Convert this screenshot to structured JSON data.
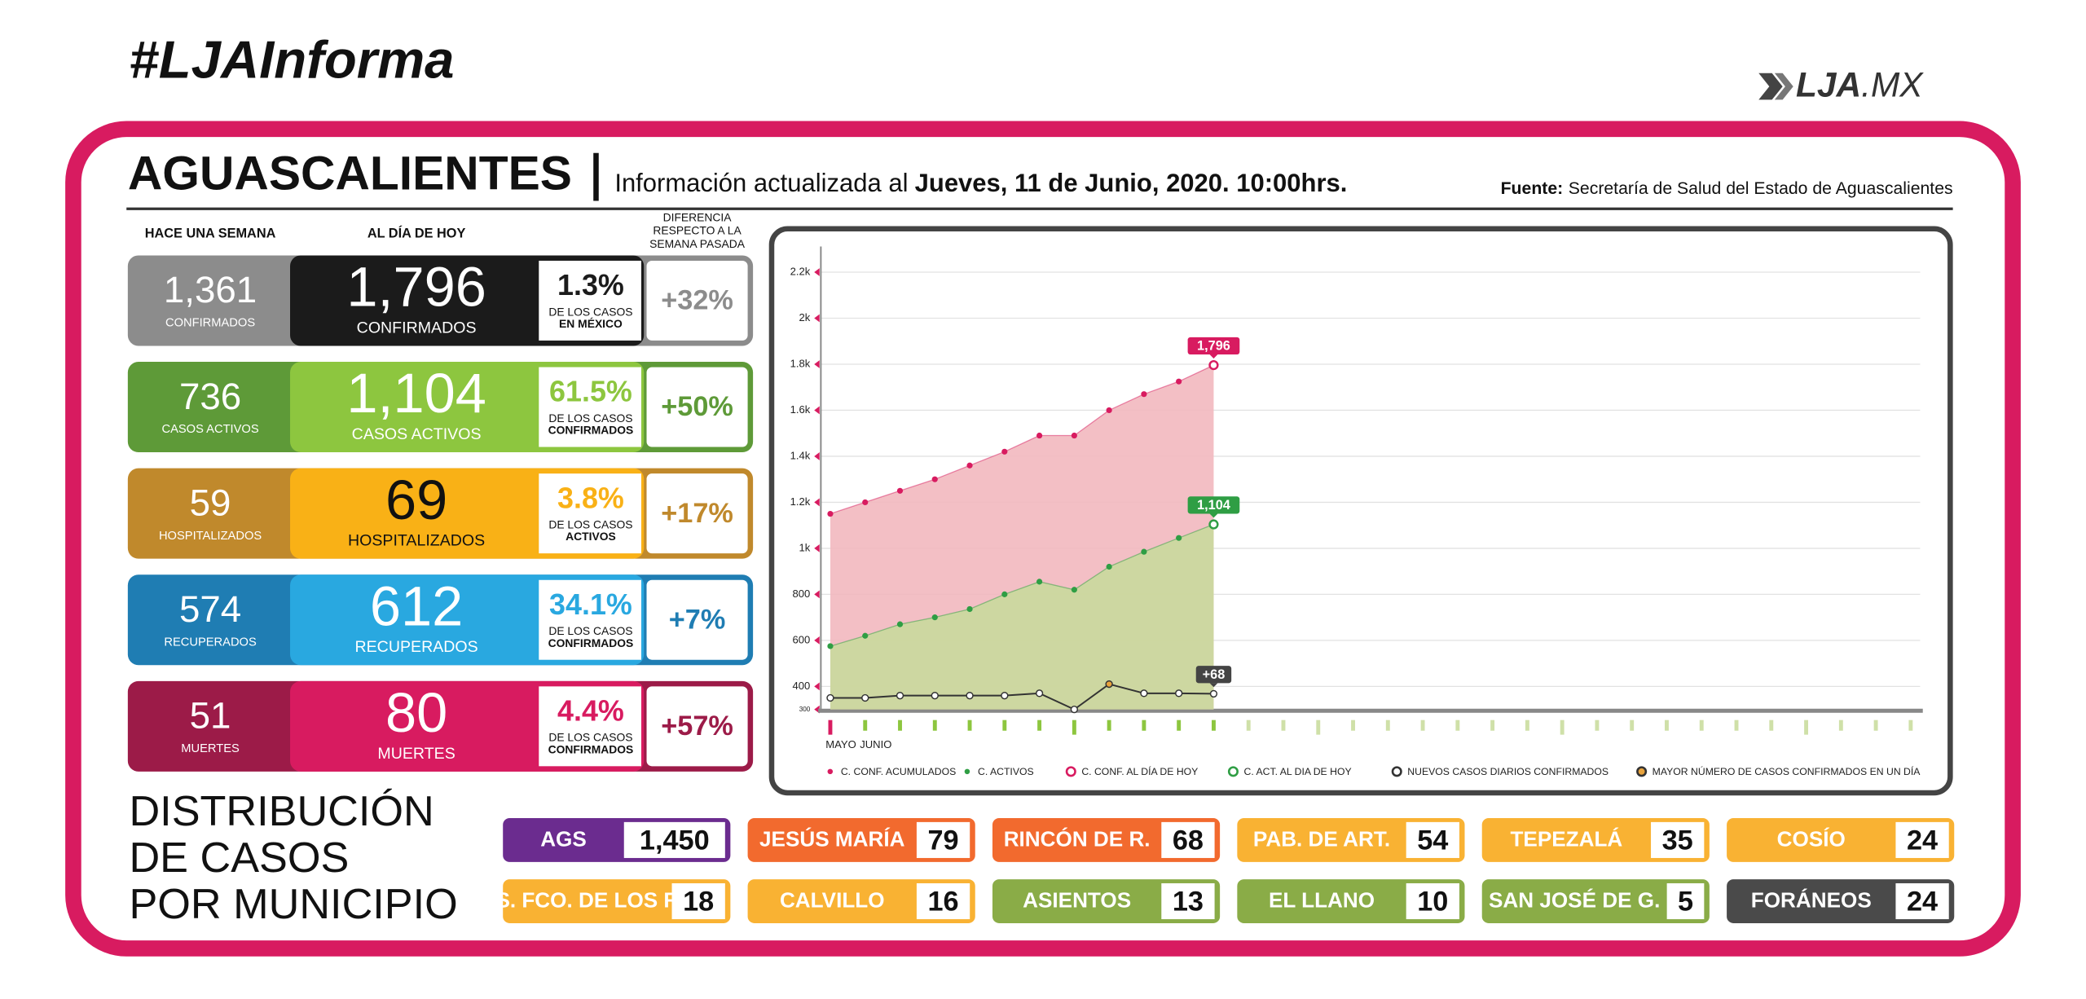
{
  "header": {
    "hashtag": "#LJAInforma",
    "logo_bold": "LJA",
    "logo_light": ".MX",
    "title": "AGUASCALIENTES",
    "updated_prefix": "Información actualizada al",
    "updated_date": "Jueves, 11 de Junio, 2020. 10:00hrs.",
    "source_label": "Fuente:",
    "source": "Secretaría de Salud del Estado de Aguascalientes"
  },
  "columns": {
    "week": "HACE UNA SEMANA",
    "today": "AL DÍA DE HOY",
    "diff": [
      "DIFERENCIA",
      "RESPECTO A LA",
      "SEMANA PASADA"
    ]
  },
  "cards": [
    {
      "week_value": "1,361",
      "week_label": "CONFIRMADOS",
      "today_value": "1,796",
      "today_label": "CONFIRMADOS",
      "pct": "1.3%",
      "pct_label": [
        "DE LOS CASOS",
        "EN MÉXICO"
      ],
      "diff": "+32%",
      "color_week": "#8c8c8c",
      "color_today": "#1b1b1b",
      "color_today_text": "#ffffff",
      "color_pct": "#1b1b1b",
      "color_diff": "#8c8c8c"
    },
    {
      "week_value": "736",
      "week_label": "CASOS ACTIVOS",
      "today_value": "1,104",
      "today_label": "CASOS ACTIVOS",
      "pct": "61.5%",
      "pct_label": [
        "DE LOS CASOS",
        "CONFIRMADOS"
      ],
      "diff": "+50%",
      "color_week": "#5e9a38",
      "color_today": "#8dc63f",
      "color_today_text": "#ffffff",
      "color_pct": "#8dc63f",
      "color_diff": "#5e9a38"
    },
    {
      "week_value": "59",
      "week_label": "HOSPITALIZADOS",
      "today_value": "69",
      "today_label": "HOSPITALIZADOS",
      "pct": "3.8%",
      "pct_label": [
        "DE LOS CASOS",
        "ACTIVOS"
      ],
      "diff": "+17%",
      "color_week": "#c0892c",
      "color_today": "#f9b116",
      "color_today_text": "#111111",
      "color_pct": "#f9b116",
      "color_diff": "#c0892c"
    },
    {
      "week_value": "574",
      "week_label": "RECUPERADOS",
      "today_value": "612",
      "today_label": "RECUPERADOS",
      "pct": "34.1%",
      "pct_label": [
        "DE LOS CASOS",
        "CONFIRMADOS"
      ],
      "diff": "+7%",
      "color_week": "#1f7db3",
      "color_today": "#29a8e0",
      "color_today_text": "#ffffff",
      "color_pct": "#29a8e0",
      "color_diff": "#1f7db3"
    },
    {
      "week_value": "51",
      "week_label": "MUERTES",
      "today_value": "80",
      "today_label": "MUERTES",
      "pct": "4.4%",
      "pct_label": [
        "DE LOS CASOS",
        "CONFIRMADOS"
      ],
      "diff": "+57%",
      "color_week": "#9c1b48",
      "color_today": "#d81b60",
      "color_today_text": "#ffffff",
      "color_pct": "#d81b60",
      "color_diff": "#9c1b48"
    }
  ],
  "distribution": {
    "title": [
      "DISTRIBUCIÓN",
      "DE CASOS",
      "POR MUNICIPIO"
    ],
    "items": [
      {
        "name": "AGS",
        "value": "1,450",
        "color": "#6b2c8f"
      },
      {
        "name": "JESÚS MARÍA",
        "value": "79",
        "color": "#f26a2e"
      },
      {
        "name": "RINCÓN DE R.",
        "value": "68",
        "color": "#f26a2e"
      },
      {
        "name": "PAB. DE ART.",
        "value": "54",
        "color": "#f9b233"
      },
      {
        "name": "TEPEZALÁ",
        "value": "35",
        "color": "#f9b233"
      },
      {
        "name": "COSÍO",
        "value": "24",
        "color": "#f9b233"
      },
      {
        "name": "S. FCO. DE LOS R",
        "value": "18",
        "color": "#f9b233"
      },
      {
        "name": "CALVILLO",
        "value": "16",
        "color": "#f9b233"
      },
      {
        "name": "ASIENTOS",
        "value": "13",
        "color": "#8aac47"
      },
      {
        "name": "EL LLANO",
        "value": "10",
        "color": "#8aac47"
      },
      {
        "name": "SAN JOSÉ DE G.",
        "value": "5",
        "color": "#8aac47"
      },
      {
        "name": "FORÁNEOS",
        "value": "24",
        "color": "#4a4a4a"
      }
    ]
  },
  "chart_data": {
    "type": "area",
    "categories": [
      "MAYO",
      "JUNIO",
      null,
      null,
      null,
      null,
      null,
      null,
      null,
      null,
      null,
      null,
      null,
      null,
      null,
      null,
      null,
      null,
      null,
      null,
      null,
      null,
      null,
      null,
      null,
      null,
      null,
      null,
      null,
      null,
      null,
      null
    ],
    "series": [
      {
        "name": "C. CONF. ACUMULADOS",
        "color": "#d81b60",
        "area_color": "#f2b8bf",
        "values": [
          1150,
          1200,
          1250,
          1300,
          1360,
          1420,
          1490,
          1490,
          1600,
          1670,
          1725,
          1796,
          null,
          null,
          null,
          null,
          null,
          null,
          null,
          null,
          null,
          null,
          null,
          null,
          null,
          null,
          null,
          null,
          null,
          null,
          null,
          null
        ],
        "value_labels": [
          null,
          null,
          null,
          null,
          null,
          null,
          null,
          null,
          null,
          null,
          null,
          "1,796",
          null,
          null,
          null,
          null,
          null,
          null,
          null,
          null,
          null,
          null,
          null,
          null,
          null,
          null,
          null,
          null,
          null,
          null,
          null,
          null
        ]
      },
      {
        "name": "C. ACTIVOS",
        "color": "#2f9e44",
        "area_color": "#c9d99c",
        "values": [
          575,
          620,
          670,
          700,
          736,
          800,
          855,
          820,
          920,
          985,
          1045,
          1104,
          null,
          null,
          null,
          null,
          null,
          null,
          null,
          null,
          null,
          null,
          null,
          null,
          null,
          null,
          null,
          null,
          null,
          null,
          null,
          null
        ],
        "value_labels": [
          null,
          null,
          null,
          null,
          null,
          null,
          null,
          null,
          null,
          null,
          null,
          "1,104",
          null,
          null,
          null,
          null,
          null,
          null,
          null,
          null,
          null,
          null,
          null,
          null,
          null,
          null,
          null,
          null,
          null,
          null,
          null,
          null
        ]
      },
      {
        "name": "NUEVOS CASOS DIARIOS CONFIRMADOS",
        "color": "#333333",
        "axis": "y2",
        "values": [
          50,
          50,
          60,
          60,
          60,
          60,
          70,
          0,
          110,
          70,
          70,
          68,
          null,
          null,
          null,
          null,
          null,
          null,
          null,
          null,
          null,
          null,
          null,
          null,
          null,
          null,
          null,
          null,
          null,
          null,
          null,
          null
        ],
        "value_labels": [
          null,
          null,
          null,
          null,
          null,
          null,
          null,
          null,
          null,
          null,
          null,
          "+68",
          null,
          null,
          null,
          null,
          null,
          null,
          null,
          null,
          null,
          null,
          null,
          null,
          null,
          null,
          null,
          null,
          null,
          null,
          null,
          null
        ]
      }
    ],
    "markers": [
      {
        "label": "C. CONF. AL DÍA DE HOY",
        "color": "#d81b60"
      },
      {
        "label": "C. ACT. AL DIA DE HOY",
        "color": "#2f9e44"
      },
      {
        "label": "MAYOR NÚMERO DE CASOS CONFIRMADOS EN UN DÍA",
        "color": "#e8a33d"
      }
    ],
    "ylim": [
      300,
      2300
    ],
    "yticks": [
      300,
      400,
      600,
      800,
      {
        "value": 1000,
        "label": "1k"
      },
      {
        "value": 1200,
        "label": "1.2k"
      },
      {
        "value": 1400,
        "label": "1.4k"
      },
      {
        "value": 1600,
        "label": "1.6k"
      },
      {
        "value": 1800,
        "label": "1.8k"
      },
      {
        "value": 2000,
        "label": "2k"
      },
      {
        "value": 2200,
        "label": "2.2k"
      }
    ],
    "y2lim": [
      0,
      2000
    ],
    "grid": true
  }
}
